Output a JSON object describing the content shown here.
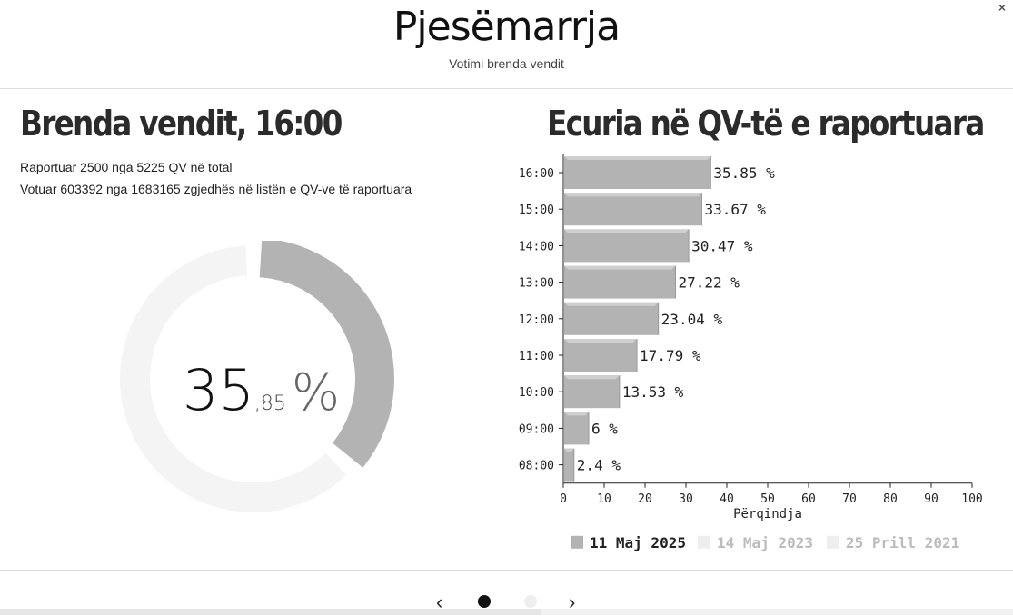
{
  "header": {
    "title": "Pjesëmarrja",
    "subtitle": "Votimi brenda vendit",
    "close_label": "×"
  },
  "left": {
    "heading": "Brenda vendit, 16:00",
    "line1": "Raportuar 2500 nga 5225 QV në total",
    "line2": "Votuar 603392 nga 1683165 zgjedhës në listën e QV-ve të raportuara",
    "donut": {
      "value": 35.85,
      "whole": "35",
      "decimal": ",85",
      "unit": "%"
    }
  },
  "right": {
    "heading": "Ecuria në QV-të e raportuara"
  },
  "chart_data": {
    "type": "bar",
    "orientation": "horizontal",
    "categories": [
      "16:00",
      "15:00",
      "14:00",
      "13:00",
      "12:00",
      "11:00",
      "10:00",
      "09:00",
      "08:00"
    ],
    "series": [
      {
        "name": "11 Maj 2025",
        "values": [
          35.85,
          33.67,
          30.47,
          27.22,
          23.04,
          17.79,
          13.53,
          6,
          2.4
        ],
        "color": "#b3b3b3"
      }
    ],
    "data_labels": [
      "35.85 %",
      "33.67 %",
      "30.47 %",
      "27.22 %",
      "23.04 %",
      "17.79 %",
      "13.53 %",
      "6 %",
      "2.4 %"
    ],
    "xlabel": "Përqindja",
    "xlim": [
      0,
      100
    ],
    "xticks": [
      "0",
      "10",
      "20",
      "30",
      "40",
      "50",
      "60",
      "70",
      "80",
      "90",
      "100"
    ],
    "legend": [
      {
        "label": "11 Maj 2025",
        "color": "#b3b3b3",
        "active": true
      },
      {
        "label": "14 Maj 2023",
        "color": "#eeeeee",
        "active": false
      },
      {
        "label": "25 Prill 2021",
        "color": "#eeeeee",
        "active": false
      }
    ],
    "legend_position": "bottom"
  },
  "pager": {
    "prev": "‹",
    "next": "›",
    "pages": 2,
    "current": 1
  },
  "colors": {
    "accent": "#b3b3b3",
    "track": "#f5f4f4",
    "dot_active": "#111111",
    "dot_inactive": "#eeeeee"
  }
}
